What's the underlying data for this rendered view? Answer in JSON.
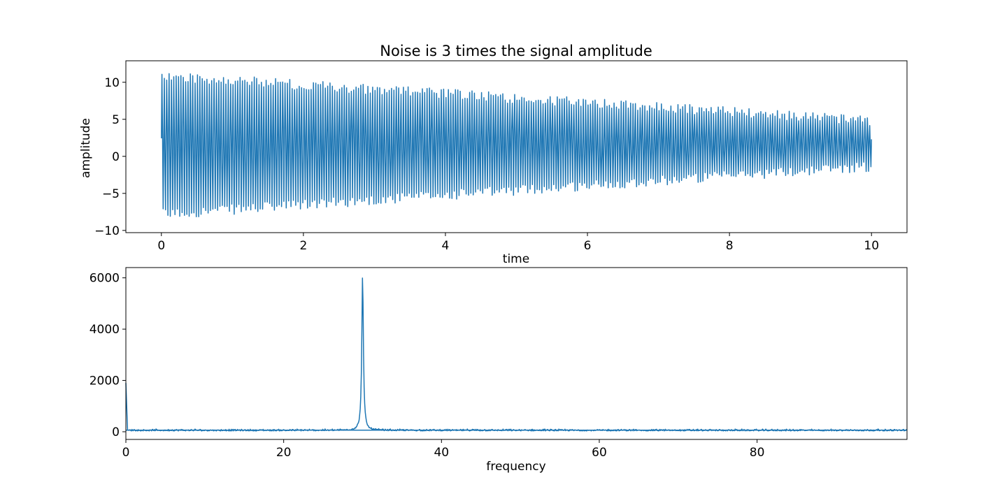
{
  "chart_data": [
    {
      "type": "line",
      "title": "Noise is 3 times the signal amplitude",
      "xlabel": "time",
      "ylabel": "amplitude",
      "xlim": [
        -0.5,
        10.5
      ],
      "ylim": [
        -10.3,
        12.9
      ],
      "xticks": [
        0,
        2,
        4,
        6,
        8,
        10
      ],
      "yticks": [
        -10,
        -5,
        0,
        5,
        10
      ],
      "grid": false,
      "legend": "none",
      "series": [
        {
          "color": "#1f77b4",
          "signal": {
            "t_start": 0,
            "t_end": 10,
            "n_cycles": 300,
            "upper_envelope_start": 11.5,
            "upper_envelope_end": 5.5,
            "lower_envelope_start": -8.5,
            "lower_envelope_end": -2.0,
            "end_value": 2.3
          }
        }
      ]
    },
    {
      "type": "line",
      "title": "",
      "xlabel": "frequency",
      "ylabel": "",
      "xlim": [
        0,
        99
      ],
      "ylim": [
        -300,
        6400
      ],
      "xticks": [
        0,
        20,
        40,
        60,
        80
      ],
      "yticks": [
        0,
        2000,
        4000,
        6000
      ],
      "grid": false,
      "legend": "none",
      "series": [
        {
          "color": "#1f77b4",
          "spectrum": {
            "baseline": 60,
            "noise_floor_range": [
              30,
              110
            ],
            "dc_value": 1900,
            "peak_frequency": 30,
            "peak_value": 6100,
            "peak_halfwidth": 0.12
          }
        }
      ]
    }
  ]
}
